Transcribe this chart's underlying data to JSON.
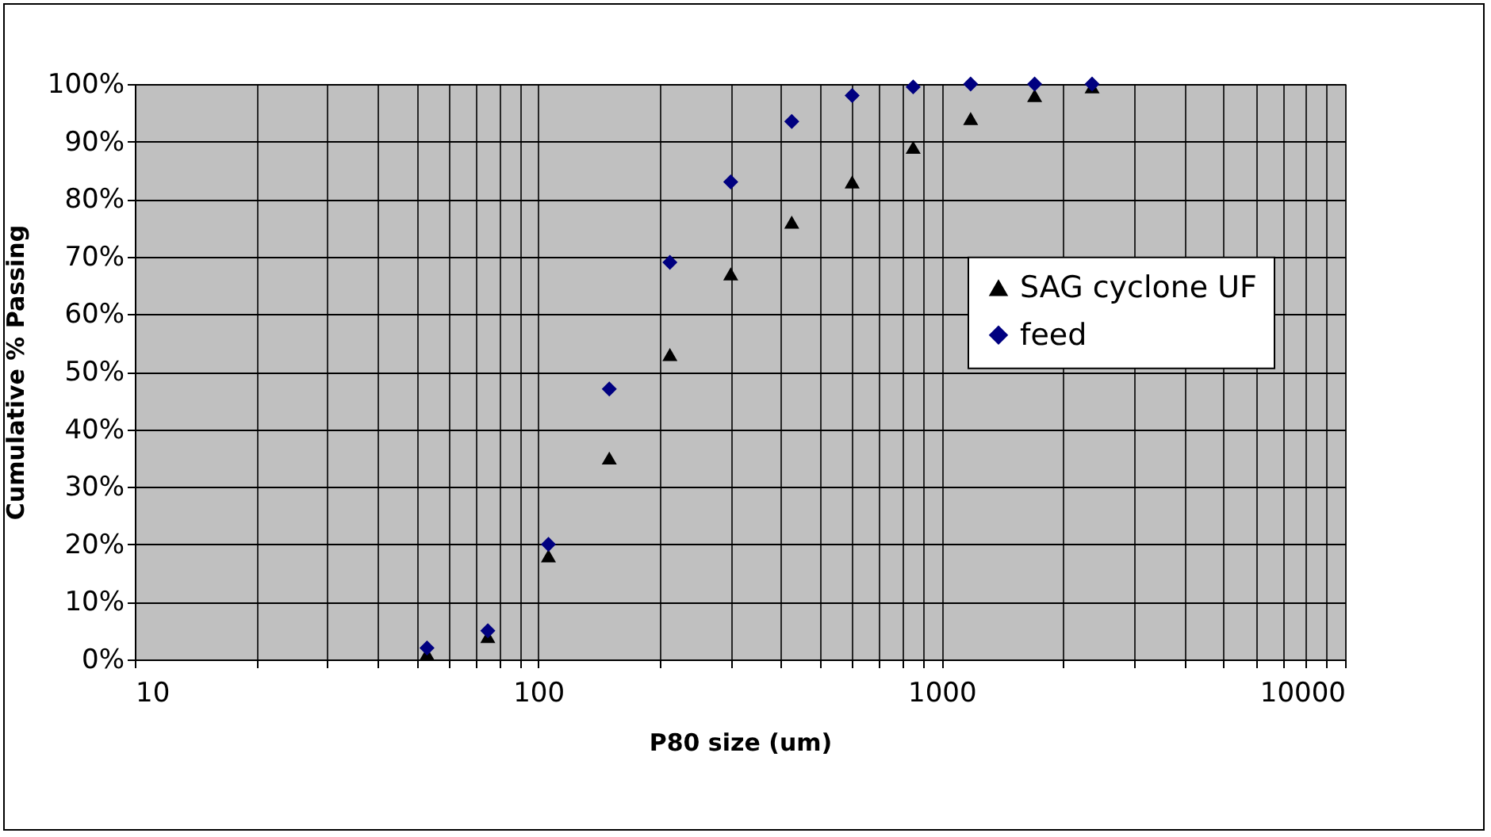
{
  "chart_data": {
    "type": "scatter",
    "xlabel": "P80 size (um)",
    "ylabel": "Cumulative % Passing",
    "log": "x",
    "grid": true,
    "legend": "right",
    "x": [
      53,
      75,
      106,
      150,
      212,
      300,
      425,
      600,
      850,
      1180,
      1700,
      2360
    ],
    "xlim": [
      10,
      10000
    ],
    "xticks": [
      10,
      {
        "value": 20,
        "label": null
      },
      {
        "value": 30,
        "label": null
      },
      {
        "value": 40,
        "label": null
      },
      {
        "value": 50,
        "label": null
      },
      {
        "value": 60,
        "label": null
      },
      {
        "value": 70,
        "label": null
      },
      {
        "value": 80,
        "label": null
      },
      {
        "value": 90,
        "label": null
      },
      100,
      {
        "value": 200,
        "label": null
      },
      {
        "value": 300,
        "label": null
      },
      {
        "value": 400,
        "label": null
      },
      {
        "value": 500,
        "label": null
      },
      {
        "value": 600,
        "label": null
      },
      {
        "value": 700,
        "label": null
      },
      {
        "value": 800,
        "label": null
      },
      {
        "value": 900,
        "label": null
      },
      1000,
      {
        "value": 2000,
        "label": null
      },
      {
        "value": 3000,
        "label": null
      },
      {
        "value": 4000,
        "label": null
      },
      {
        "value": 5000,
        "label": null
      },
      {
        "value": 6000,
        "label": null
      },
      {
        "value": 7000,
        "label": null
      },
      {
        "value": 8000,
        "label": null
      },
      {
        "value": 9000,
        "label": null
      },
      10000
    ],
    "ylim": [
      0,
      100
    ],
    "yticks": [
      {
        "value": 0,
        "label": "0%"
      },
      {
        "value": 10,
        "label": "10%"
      },
      {
        "value": 20,
        "label": "20%"
      },
      {
        "value": 30,
        "label": "30%"
      },
      {
        "value": 40,
        "label": "40%"
      },
      {
        "value": 50,
        "label": "50%"
      },
      {
        "value": 60,
        "label": "60%"
      },
      {
        "value": 70,
        "label": "70%"
      },
      {
        "value": 80,
        "label": "80%"
      },
      {
        "value": 90,
        "label": "90%"
      },
      {
        "value": 100,
        "label": "100%"
      }
    ],
    "series": [
      {
        "name": "SAG cyclone UF",
        "color": "#000000",
        "marker": "triangle",
        "values": [
          1,
          4,
          18,
          35,
          53,
          67,
          76,
          83,
          89,
          94,
          98,
          99.5
        ]
      },
      {
        "name": "feed",
        "color": "#000080",
        "marker": "diamond",
        "values": [
          2,
          5,
          20,
          47,
          69,
          83,
          93.5,
          98,
          99.5,
          100,
          100,
          100
        ]
      }
    ]
  }
}
